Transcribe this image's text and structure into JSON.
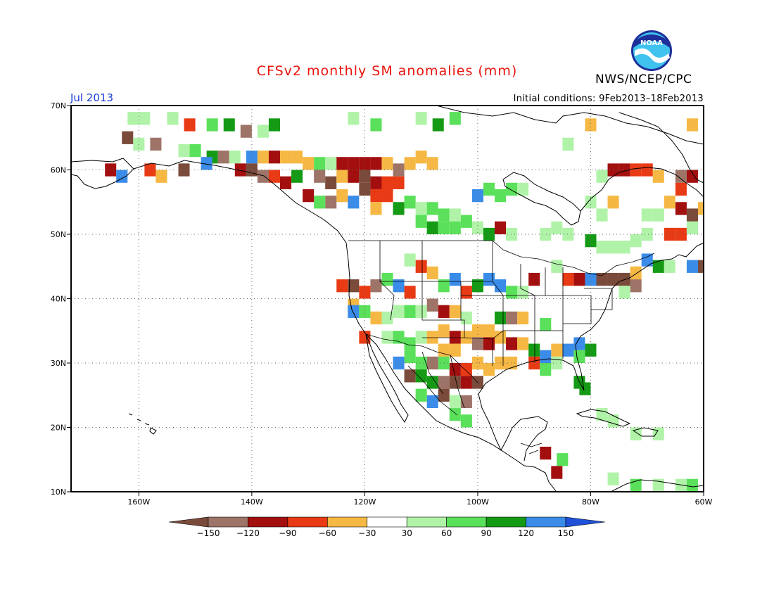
{
  "title": "CFSv2 monthly SM anomalies (mm)",
  "agency": "NWS/NCEP/CPC",
  "logo_text": "NOAA",
  "valid_month": "Jul 2013",
  "initial_conditions": "Initial conditions: 9Feb2013–18Feb2013",
  "map": {
    "lon_range": [
      -172,
      -60
    ],
    "lat_range": [
      10,
      70
    ],
    "lon_ticks": [
      {
        "lon": -160,
        "label": "160W"
      },
      {
        "lon": -140,
        "label": "140W"
      },
      {
        "lon": -120,
        "label": "120W"
      },
      {
        "lon": -100,
        "label": "100W"
      },
      {
        "lon": -80,
        "label": "80W"
      },
      {
        "lon": -60,
        "label": "60W"
      }
    ],
    "lat_ticks": [
      {
        "lat": 10,
        "label": "10N"
      },
      {
        "lat": 20,
        "label": "20N"
      },
      {
        "lat": 30,
        "label": "30N"
      },
      {
        "lat": 40,
        "label": "40N"
      },
      {
        "lat": 50,
        "label": "50N"
      },
      {
        "lat": 60,
        "label": "60N"
      },
      {
        "lat": 70,
        "label": "70N"
      }
    ],
    "gridlines": "dotted",
    "anomaly_cells": [
      {
        "lon": -161,
        "lat": 68,
        "cls": 6
      },
      {
        "lon": -159,
        "lat": 68,
        "cls": 6
      },
      {
        "lon": -157,
        "lat": 68,
        "cls": 5
      },
      {
        "lon": -154,
        "lat": 68,
        "cls": 6
      },
      {
        "lon": -151,
        "lat": 67,
        "cls": 3
      },
      {
        "lon": -147,
        "lat": 67,
        "cls": 7
      },
      {
        "lon": -144,
        "lat": 67,
        "cls": 8
      },
      {
        "lon": -141,
        "lat": 66,
        "cls": 1
      },
      {
        "lon": -138,
        "lat": 66,
        "cls": 6
      },
      {
        "lon": -136,
        "lat": 67,
        "cls": 8
      },
      {
        "lon": -122,
        "lat": 68,
        "cls": 6
      },
      {
        "lon": -118,
        "lat": 67,
        "cls": 7
      },
      {
        "lon": -110,
        "lat": 68,
        "cls": 6
      },
      {
        "lon": -107,
        "lat": 67,
        "cls": 8
      },
      {
        "lon": -104,
        "lat": 68,
        "cls": 7
      },
      {
        "lon": -162,
        "lat": 65,
        "cls": 0
      },
      {
        "lon": -160,
        "lat": 64,
        "cls": 6
      },
      {
        "lon": -157,
        "lat": 64,
        "cls": 1
      },
      {
        "lon": -152,
        "lat": 63,
        "cls": 6
      },
      {
        "lon": -150,
        "lat": 63,
        "cls": 7
      },
      {
        "lon": -147,
        "lat": 62,
        "cls": 8
      },
      {
        "lon": -145,
        "lat": 62,
        "cls": 1
      },
      {
        "lon": -143,
        "lat": 62,
        "cls": 6
      },
      {
        "lon": -140,
        "lat": 62,
        "cls": 9
      },
      {
        "lon": -138,
        "lat": 62,
        "cls": 4
      },
      {
        "lon": -136,
        "lat": 62,
        "cls": 2
      },
      {
        "lon": -134,
        "lat": 62,
        "cls": 4
      },
      {
        "lon": -132,
        "lat": 62,
        "cls": 4
      },
      {
        "lon": -130,
        "lat": 61,
        "cls": 4
      },
      {
        "lon": -128,
        "lat": 61,
        "cls": 7
      },
      {
        "lon": -126,
        "lat": 61,
        "cls": 6
      },
      {
        "lon": -124,
        "lat": 61,
        "cls": 2
      },
      {
        "lon": -122,
        "lat": 61,
        "cls": 2
      },
      {
        "lon": -120,
        "lat": 61,
        "cls": 2
      },
      {
        "lon": -118,
        "lat": 61,
        "cls": 2
      },
      {
        "lon": -116,
        "lat": 61,
        "cls": 4
      },
      {
        "lon": -114,
        "lat": 60,
        "cls": 1
      },
      {
        "lon": -112,
        "lat": 61,
        "cls": 4
      },
      {
        "lon": -110,
        "lat": 62,
        "cls": 4
      },
      {
        "lon": -108,
        "lat": 61,
        "cls": 4
      },
      {
        "lon": -106,
        "lat": 61,
        "cls": 5
      },
      {
        "lon": -165,
        "lat": 60,
        "cls": 2
      },
      {
        "lon": -163,
        "lat": 59,
        "cls": 9
      },
      {
        "lon": -158,
        "lat": 60,
        "cls": 3
      },
      {
        "lon": -156,
        "lat": 59,
        "cls": 4
      },
      {
        "lon": -152,
        "lat": 60,
        "cls": 0
      },
      {
        "lon": -150,
        "lat": 60,
        "cls": 5
      },
      {
        "lon": -148,
        "lat": 61,
        "cls": 9
      },
      {
        "lon": -142,
        "lat": 60,
        "cls": 2
      },
      {
        "lon": -140,
        "lat": 60,
        "cls": 0
      },
      {
        "lon": -138,
        "lat": 59,
        "cls": 1
      },
      {
        "lon": -136,
        "lat": 59,
        "cls": 3
      },
      {
        "lon": -134,
        "lat": 58,
        "cls": 2
      },
      {
        "lon": -132,
        "lat": 59,
        "cls": 8
      },
      {
        "lon": -128,
        "lat": 59,
        "cls": 1
      },
      {
        "lon": -126,
        "lat": 58,
        "cls": 0
      },
      {
        "lon": -124,
        "lat": 59,
        "cls": 4
      },
      {
        "lon": -122,
        "lat": 59,
        "cls": 2
      },
      {
        "lon": -120,
        "lat": 59,
        "cls": 0
      },
      {
        "lon": -118,
        "lat": 58,
        "cls": 2
      },
      {
        "lon": -116,
        "lat": 58,
        "cls": 3
      },
      {
        "lon": -114,
        "lat": 58,
        "cls": 3
      },
      {
        "lon": -120,
        "lat": 57,
        "cls": 0
      },
      {
        "lon": -118,
        "lat": 56,
        "cls": 3
      },
      {
        "lon": -116,
        "lat": 56,
        "cls": 3
      },
      {
        "lon": -124,
        "lat": 56,
        "cls": 4
      },
      {
        "lon": -122,
        "lat": 55,
        "cls": 9
      },
      {
        "lon": -126,
        "lat": 55,
        "cls": 1
      },
      {
        "lon": -128,
        "lat": 55,
        "cls": 7
      },
      {
        "lon": -130,
        "lat": 56,
        "cls": 2
      },
      {
        "lon": -118,
        "lat": 54,
        "cls": 4
      },
      {
        "lon": -114,
        "lat": 54,
        "cls": 8
      },
      {
        "lon": -112,
        "lat": 55,
        "cls": 7
      },
      {
        "lon": -110,
        "lat": 54,
        "cls": 6
      },
      {
        "lon": -108,
        "lat": 54,
        "cls": 7
      },
      {
        "lon": -106,
        "lat": 53,
        "cls": 7
      },
      {
        "lon": -104,
        "lat": 53,
        "cls": 6
      },
      {
        "lon": -102,
        "lat": 52,
        "cls": 7
      },
      {
        "lon": -110,
        "lat": 52,
        "cls": 7
      },
      {
        "lon": -108,
        "lat": 51,
        "cls": 8
      },
      {
        "lon": -106,
        "lat": 51,
        "cls": 7
      },
      {
        "lon": -104,
        "lat": 51,
        "cls": 7
      },
      {
        "lon": -100,
        "lat": 51,
        "cls": 6
      },
      {
        "lon": -98,
        "lat": 50,
        "cls": 8
      },
      {
        "lon": -96,
        "lat": 51,
        "cls": 2
      },
      {
        "lon": -94,
        "lat": 50,
        "cls": 6
      },
      {
        "lon": -100,
        "lat": 56,
        "cls": 9
      },
      {
        "lon": -98,
        "lat": 57,
        "cls": 7
      },
      {
        "lon": -96,
        "lat": 56,
        "cls": 7
      },
      {
        "lon": -94,
        "lat": 57,
        "cls": 7
      },
      {
        "lon": -92,
        "lat": 57,
        "cls": 6
      },
      {
        "lon": -88,
        "lat": 50,
        "cls": 6
      },
      {
        "lon": -86,
        "lat": 51,
        "cls": 6
      },
      {
        "lon": -84,
        "lat": 50,
        "cls": 6
      },
      {
        "lon": -80,
        "lat": 49,
        "cls": 8
      },
      {
        "lon": -80,
        "lat": 55,
        "cls": 6
      },
      {
        "lon": -78,
        "lat": 53,
        "cls": 6
      },
      {
        "lon": -78,
        "lat": 48,
        "cls": 6
      },
      {
        "lon": -76,
        "lat": 48,
        "cls": 6
      },
      {
        "lon": -74,
        "lat": 48,
        "cls": 6
      },
      {
        "lon": -72,
        "lat": 49,
        "cls": 6
      },
      {
        "lon": -70,
        "lat": 50,
        "cls": 6
      },
      {
        "lon": -66,
        "lat": 50,
        "cls": 3
      },
      {
        "lon": -64,
        "lat": 50,
        "cls": 3
      },
      {
        "lon": -62,
        "lat": 51,
        "cls": 6
      },
      {
        "lon": -60,
        "lat": 54,
        "cls": 4
      },
      {
        "lon": -62,
        "lat": 53,
        "cls": 0
      },
      {
        "lon": -64,
        "lat": 54,
        "cls": 2
      },
      {
        "lon": -66,
        "lat": 55,
        "cls": 4
      },
      {
        "lon": -70,
        "lat": 53,
        "cls": 6
      },
      {
        "lon": -68,
        "lat": 53,
        "cls": 6
      },
      {
        "lon": -76,
        "lat": 55,
        "cls": 4
      },
      {
        "lon": -78,
        "lat": 59,
        "cls": 6
      },
      {
        "lon": -76,
        "lat": 60,
        "cls": 2
      },
      {
        "lon": -74,
        "lat": 60,
        "cls": 2
      },
      {
        "lon": -72,
        "lat": 60,
        "cls": 3
      },
      {
        "lon": -70,
        "lat": 60,
        "cls": 3
      },
      {
        "lon": -68,
        "lat": 59,
        "cls": 4
      },
      {
        "lon": -64,
        "lat": 59,
        "cls": 1
      },
      {
        "lon": -62,
        "lat": 59,
        "cls": 2
      },
      {
        "lon": -64,
        "lat": 57,
        "cls": 3
      },
      {
        "lon": -84,
        "lat": 64,
        "cls": 6
      },
      {
        "lon": -80,
        "lat": 67,
        "cls": 4
      },
      {
        "lon": -62,
        "lat": 67,
        "cls": 4
      },
      {
        "lon": -70,
        "lat": 46,
        "cls": 9
      },
      {
        "lon": -68,
        "lat": 45,
        "cls": 8
      },
      {
        "lon": -62,
        "lat": 45,
        "cls": 9
      },
      {
        "lon": -60,
        "lat": 45,
        "cls": 0
      },
      {
        "lon": -66,
        "lat": 45,
        "cls": 6
      },
      {
        "lon": -72,
        "lat": 42,
        "cls": 1
      },
      {
        "lon": -74,
        "lat": 43,
        "cls": 0
      },
      {
        "lon": -76,
        "lat": 43,
        "cls": 0
      },
      {
        "lon": -78,
        "lat": 43,
        "cls": 0
      },
      {
        "lon": -80,
        "lat": 43,
        "cls": 9
      },
      {
        "lon": -82,
        "lat": 43,
        "cls": 2
      },
      {
        "lon": -84,
        "lat": 43,
        "cls": 3
      },
      {
        "lon": -72,
        "lat": 44,
        "cls": 4
      },
      {
        "lon": -74,
        "lat": 41,
        "cls": 6
      },
      {
        "lon": -86,
        "lat": 45,
        "cls": 6
      },
      {
        "lon": -90,
        "lat": 43,
        "cls": 2
      },
      {
        "lon": -98,
        "lat": 43,
        "cls": 9
      },
      {
        "lon": -100,
        "lat": 42,
        "cls": 8
      },
      {
        "lon": -96,
        "lat": 42,
        "cls": 9
      },
      {
        "lon": -92,
        "lat": 41,
        "cls": 6
      },
      {
        "lon": -94,
        "lat": 41,
        "cls": 7
      },
      {
        "lon": -102,
        "lat": 41,
        "cls": 3
      },
      {
        "lon": -104,
        "lat": 43,
        "cls": 9
      },
      {
        "lon": -106,
        "lat": 42,
        "cls": 7
      },
      {
        "lon": -108,
        "lat": 44,
        "cls": 4
      },
      {
        "lon": -110,
        "lat": 45,
        "cls": 3
      },
      {
        "lon": -112,
        "lat": 46,
        "cls": 6
      },
      {
        "lon": -116,
        "lat": 43,
        "cls": 7
      },
      {
        "lon": -114,
        "lat": 42,
        "cls": 9
      },
      {
        "lon": -112,
        "lat": 41,
        "cls": 3
      },
      {
        "lon": -118,
        "lat": 42,
        "cls": 1
      },
      {
        "lon": -120,
        "lat": 41,
        "cls": 3
      },
      {
        "lon": -122,
        "lat": 42,
        "cls": 0
      },
      {
        "lon": -124,
        "lat": 42,
        "cls": 3
      },
      {
        "lon": -122,
        "lat": 39,
        "cls": 4
      },
      {
        "lon": -122,
        "lat": 38,
        "cls": 9
      },
      {
        "lon": -120,
        "lat": 38,
        "cls": 7
      },
      {
        "lon": -118,
        "lat": 37,
        "cls": 4
      },
      {
        "lon": -116,
        "lat": 37,
        "cls": 6
      },
      {
        "lon": -114,
        "lat": 38,
        "cls": 6
      },
      {
        "lon": -112,
        "lat": 38,
        "cls": 7
      },
      {
        "lon": -110,
        "lat": 38,
        "cls": 6
      },
      {
        "lon": -108,
        "lat": 39,
        "cls": 1
      },
      {
        "lon": -106,
        "lat": 38,
        "cls": 2
      },
      {
        "lon": -104,
        "lat": 38,
        "cls": 4
      },
      {
        "lon": -102,
        "lat": 37,
        "cls": 6
      },
      {
        "lon": -96,
        "lat": 37,
        "cls": 8
      },
      {
        "lon": -94,
        "lat": 37,
        "cls": 1
      },
      {
        "lon": -92,
        "lat": 37,
        "cls": 4
      },
      {
        "lon": -88,
        "lat": 36,
        "cls": 7
      },
      {
        "lon": -120,
        "lat": 34,
        "cls": 3
      },
      {
        "lon": -116,
        "lat": 34,
        "cls": 6
      },
      {
        "lon": -114,
        "lat": 34,
        "cls": 7
      },
      {
        "lon": -112,
        "lat": 33,
        "cls": 7
      },
      {
        "lon": -110,
        "lat": 34,
        "cls": 6
      },
      {
        "lon": -108,
        "lat": 34,
        "cls": 4
      },
      {
        "lon": -106,
        "lat": 35,
        "cls": 4
      },
      {
        "lon": -104,
        "lat": 34,
        "cls": 2
      },
      {
        "lon": -102,
        "lat": 34,
        "cls": 4
      },
      {
        "lon": -100,
        "lat": 35,
        "cls": 4
      },
      {
        "lon": -98,
        "lat": 35,
        "cls": 4
      },
      {
        "lon": -96,
        "lat": 34,
        "cls": 4
      },
      {
        "lon": -94,
        "lat": 33,
        "cls": 2
      },
      {
        "lon": -92,
        "lat": 33,
        "cls": 4
      },
      {
        "lon": -98,
        "lat": 33,
        "cls": 2
      },
      {
        "lon": -100,
        "lat": 33,
        "cls": 1
      },
      {
        "lon": -106,
        "lat": 32,
        "cls": 4
      },
      {
        "lon": -104,
        "lat": 32,
        "cls": 4
      },
      {
        "lon": -86,
        "lat": 32,
        "cls": 4
      },
      {
        "lon": -88,
        "lat": 31,
        "cls": 9
      },
      {
        "lon": -90,
        "lat": 32,
        "cls": 8
      },
      {
        "lon": -84,
        "lat": 32,
        "cls": 9
      },
      {
        "lon": -82,
        "lat": 33,
        "cls": 9
      },
      {
        "lon": -80,
        "lat": 32,
        "cls": 8
      },
      {
        "lon": -82,
        "lat": 31,
        "cls": 7
      },
      {
        "lon": -86,
        "lat": 30,
        "cls": 6
      },
      {
        "lon": -88,
        "lat": 29,
        "cls": 7
      },
      {
        "lon": -90,
        "lat": 30,
        "cls": 3
      },
      {
        "lon": -94,
        "lat": 30,
        "cls": 4
      },
      {
        "lon": -96,
        "lat": 30,
        "cls": 4
      },
      {
        "lon": -98,
        "lat": 29,
        "cls": 4
      },
      {
        "lon": -100,
        "lat": 30,
        "cls": 4
      },
      {
        "lon": -102,
        "lat": 29,
        "cls": 3
      },
      {
        "lon": -104,
        "lat": 29,
        "cls": 2
      },
      {
        "lon": -106,
        "lat": 30,
        "cls": 7
      },
      {
        "lon": -108,
        "lat": 30,
        "cls": 1
      },
      {
        "lon": -110,
        "lat": 30,
        "cls": 7
      },
      {
        "lon": -112,
        "lat": 31,
        "cls": 7
      },
      {
        "lon": -114,
        "lat": 30,
        "cls": 9
      },
      {
        "lon": -112,
        "lat": 28,
        "cls": 0
      },
      {
        "lon": -110,
        "lat": 28,
        "cls": 8
      },
      {
        "lon": -108,
        "lat": 27,
        "cls": 8
      },
      {
        "lon": -106,
        "lat": 27,
        "cls": 1
      },
      {
        "lon": -104,
        "lat": 27,
        "cls": 0
      },
      {
        "lon": -102,
        "lat": 27,
        "cls": 2
      },
      {
        "lon": -100,
        "lat": 27,
        "cls": 0
      },
      {
        "lon": -106,
        "lat": 25,
        "cls": 0
      },
      {
        "lon": -108,
        "lat": 24,
        "cls": 9
      },
      {
        "lon": -110,
        "lat": 25,
        "cls": 7
      },
      {
        "lon": -104,
        "lat": 24,
        "cls": 6
      },
      {
        "lon": -102,
        "lat": 24,
        "cls": 1
      },
      {
        "lon": -104,
        "lat": 22,
        "cls": 7
      },
      {
        "lon": -102,
        "lat": 21,
        "cls": 7
      },
      {
        "lon": -82,
        "lat": 27,
        "cls": 8
      },
      {
        "lon": -81,
        "lat": 26,
        "cls": 8
      },
      {
        "lon": -88,
        "lat": 16,
        "cls": 2
      },
      {
        "lon": -85,
        "lat": 15,
        "cls": 7
      },
      {
        "lon": -86,
        "lat": 13,
        "cls": 2
      },
      {
        "lon": -78,
        "lat": 22,
        "cls": 6
      },
      {
        "lon": -76,
        "lat": 21,
        "cls": 6
      },
      {
        "lon": -72,
        "lat": 19,
        "cls": 6
      },
      {
        "lon": -68,
        "lat": 19,
        "cls": 6
      },
      {
        "lon": -76,
        "lat": 12,
        "cls": 6
      },
      {
        "lon": -72,
        "lat": 11,
        "cls": 7
      },
      {
        "lon": -68,
        "lat": 11,
        "cls": 6
      },
      {
        "lon": -64,
        "lat": 11,
        "cls": 6
      },
      {
        "lon": -62,
        "lat": 11,
        "cls": 7
      },
      {
        "lon": -80,
        "lat": 9,
        "cls": 6
      }
    ]
  },
  "legend": {
    "colors": [
      "#7a4a3a",
      "#9e7468",
      "#a30f0f",
      "#e83a14",
      "#f6b844",
      "#ffffff",
      "#b0f3a8",
      "#5ae05a",
      "#159a15",
      "#3a8ce8",
      "#1f52d8"
    ],
    "labels": [
      "−150",
      "−120",
      "−90",
      "−60",
      "−30",
      "30",
      "60",
      "90",
      "120",
      "150"
    ]
  }
}
